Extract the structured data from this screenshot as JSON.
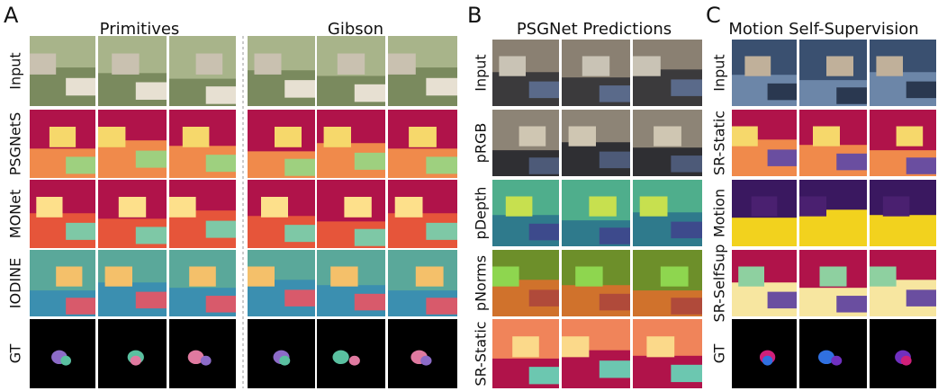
{
  "panels": [
    {
      "letter": "A",
      "groups": [
        {
          "title": "Primitives"
        },
        {
          "title": "Gibson"
        }
      ],
      "rows": [
        "Input",
        "PSGNetS",
        "MONet",
        "IODINE",
        "GT"
      ]
    },
    {
      "letter": "B",
      "groups": [
        {
          "title": "PSGNet Predictions"
        }
      ],
      "rows": [
        "Input",
        "pRGB",
        "pDepth",
        "pNorms",
        "SR-Static"
      ]
    },
    {
      "letter": "C",
      "groups": [
        {
          "title": "Motion Self-Supervision"
        }
      ],
      "rows": [
        "Input",
        "SR-Static",
        "Motion",
        "SR-SelfSup",
        "GT"
      ]
    }
  ]
}
